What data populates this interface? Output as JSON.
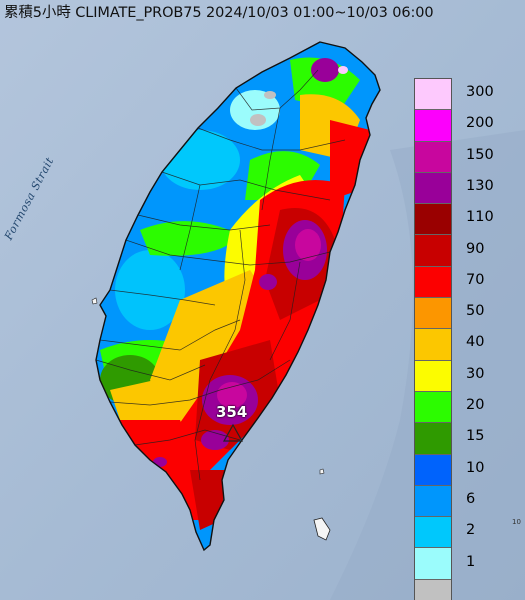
{
  "title": "累積5小時 CLIMATE_PROB75 2024/10/03 01:00~10/03 06:00",
  "sea_label": "Formosa Strait",
  "max_station_value": "354",
  "edge_mark": "10",
  "legend": {
    "levels": [
      {
        "label": "300",
        "color": "#fdc9fd"
      },
      {
        "label": "200",
        "color": "#fc00fc"
      },
      {
        "label": "150",
        "color": "#c8069e"
      },
      {
        "label": "130",
        "color": "#990099"
      },
      {
        "label": "110",
        "color": "#9a0000"
      },
      {
        "label": "90",
        "color": "#c80000"
      },
      {
        "label": "70",
        "color": "#fc0000"
      },
      {
        "label": "50",
        "color": "#fc9600"
      },
      {
        "label": "40",
        "color": "#fcc700"
      },
      {
        "label": "30",
        "color": "#fcfc00"
      },
      {
        "label": "20",
        "color": "#2cfc00"
      },
      {
        "label": "15",
        "color": "#2f9a00"
      },
      {
        "label": "10",
        "color": "#0063fc"
      },
      {
        "label": "6",
        "color": "#0096fc"
      },
      {
        "label": "2",
        "color": "#00c8fc"
      },
      {
        "label": "1",
        "color": "#9bfcfc"
      },
      {
        "label": "",
        "color": "#c1c1c1"
      }
    ]
  }
}
